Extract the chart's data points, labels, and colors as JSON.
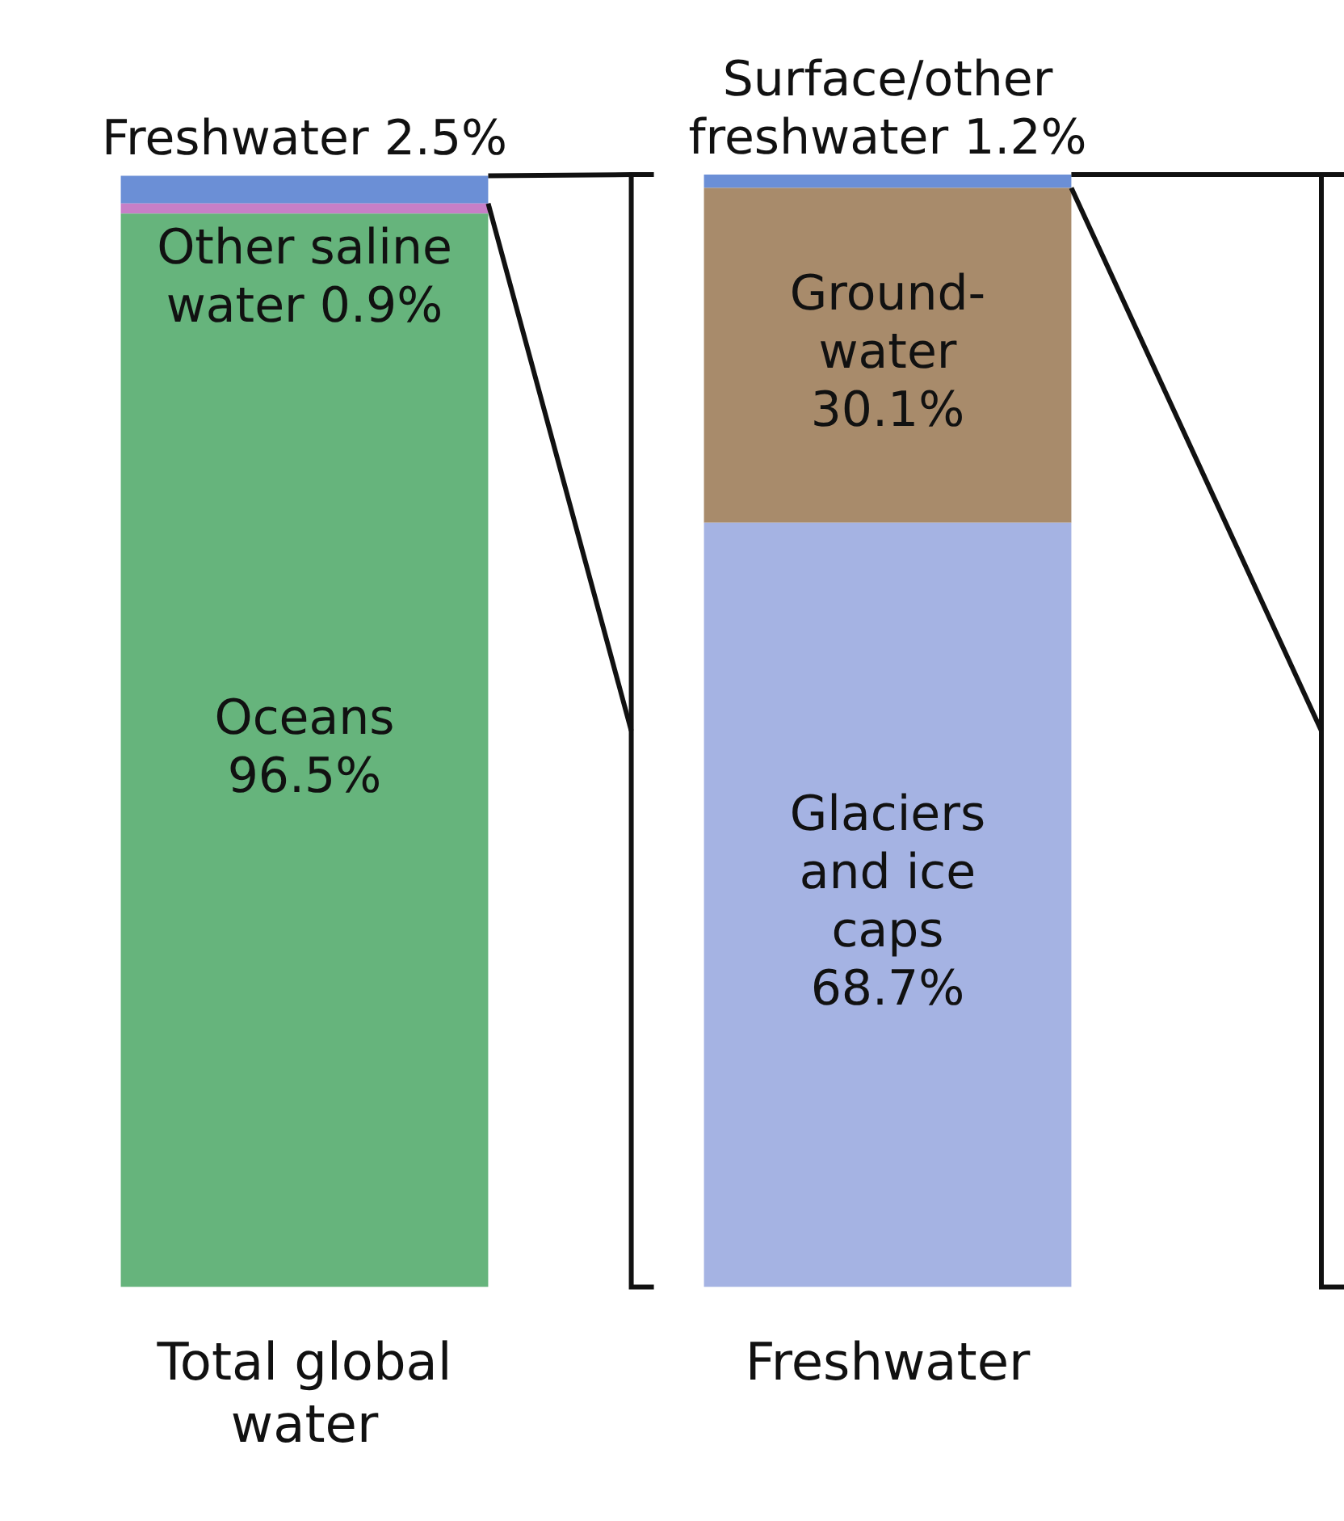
{
  "chart_data": {
    "type": "bar",
    "stacked": true,
    "categories": [
      "Total global water",
      "Freshwater"
    ],
    "tick_labels": "x",
    "grid": false,
    "legend": false,
    "series": [
      {
        "name": "Oceans",
        "color": "#66b47c",
        "values": [
          96.5,
          null
        ],
        "value_labels": [
          "96.5%",
          null
        ]
      },
      {
        "name": "Other saline water",
        "color": "#c77fc7",
        "values": [
          0.9,
          null
        ],
        "value_labels": [
          "0.9%",
          null
        ]
      },
      {
        "name": "Freshwater",
        "color": "#6b8fd6",
        "values": [
          2.5,
          null
        ],
        "value_labels": [
          "2.5%",
          null
        ]
      },
      {
        "name": "Glaciers and ice caps",
        "color": "#a5b3e3",
        "values": [
          null,
          68.7
        ],
        "value_labels": [
          null,
          "68.7%"
        ]
      },
      {
        "name": "Ground-water",
        "color": "#a88b6b",
        "values": [
          null,
          30.1
        ],
        "value_labels": [
          null,
          "30.1%"
        ]
      },
      {
        "name": "Surface/other freshwater",
        "color": "#6b8fd6",
        "values": [
          null,
          1.2
        ],
        "value_labels": [
          null,
          "1.2%"
        ]
      }
    ]
  }
}
